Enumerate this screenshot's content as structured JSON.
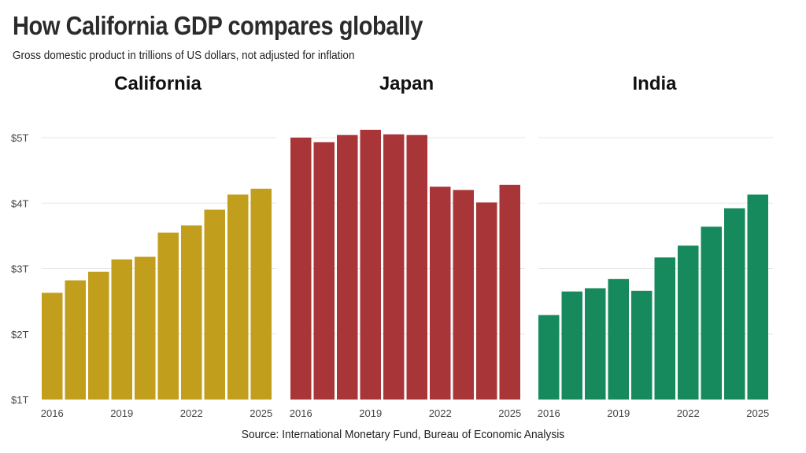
{
  "title": "How California GDP compares globally",
  "subtitle": "Gross domestic product in trillions of US dollars, not adjusted for inflation",
  "source": "Source: International Monetary Fund, Bureau of Economic Analysis",
  "chart_data": [
    {
      "type": "bar",
      "title": "California",
      "color": "#c29e1d",
      "categories": [
        "2016",
        "2017",
        "2018",
        "2019",
        "2020",
        "2021",
        "2022",
        "2023",
        "2024",
        "2025"
      ],
      "values": [
        2.63,
        2.82,
        2.95,
        3.14,
        3.18,
        3.55,
        3.66,
        3.9,
        4.13,
        4.22
      ],
      "ylim": [
        1,
        5
      ],
      "yticks": [
        "$1T",
        "$2T",
        "$3T",
        "$4T",
        "$5T"
      ],
      "xticks": [
        "2016",
        "2019",
        "2022",
        "2025"
      ],
      "grid": true
    },
    {
      "type": "bar",
      "title": "Japan",
      "color": "#a83638",
      "categories": [
        "2016",
        "2017",
        "2018",
        "2019",
        "2020",
        "2021",
        "2022",
        "2023",
        "2024",
        "2025"
      ],
      "values": [
        5.0,
        4.93,
        5.04,
        5.12,
        5.05,
        5.04,
        4.25,
        4.2,
        4.01,
        4.28
      ],
      "ylim": [
        1,
        5
      ],
      "xticks": [
        "2016",
        "2019",
        "2022",
        "2025"
      ],
      "grid": true
    },
    {
      "type": "bar",
      "title": "India",
      "color": "#168a5c",
      "categories": [
        "2016",
        "2017",
        "2018",
        "2019",
        "2020",
        "2021",
        "2022",
        "2023",
        "2024",
        "2025"
      ],
      "values": [
        2.29,
        2.65,
        2.7,
        2.84,
        2.66,
        3.17,
        3.35,
        3.64,
        3.92,
        4.13
      ],
      "ylim": [
        1,
        5
      ],
      "xticks": [
        "2016",
        "2019",
        "2022",
        "2025"
      ],
      "grid": true
    }
  ]
}
